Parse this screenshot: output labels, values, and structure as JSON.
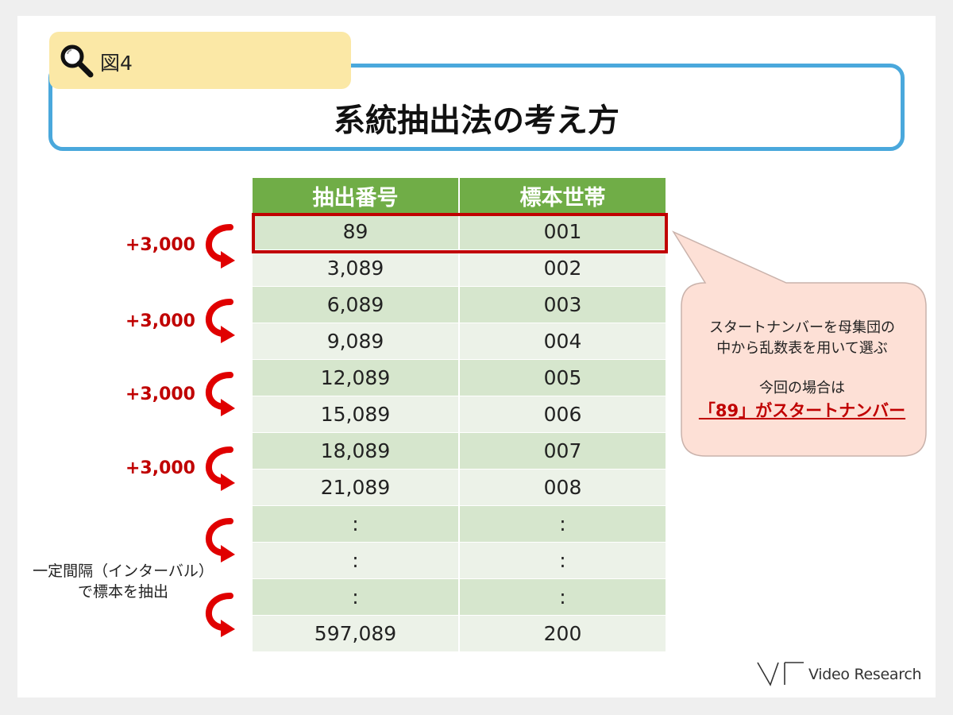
{
  "figure_label": "図4",
  "title": "系統抽出法の考え方",
  "table": {
    "headers": [
      "抽出番号",
      "標本世帯"
    ],
    "rows": [
      [
        "89",
        "001"
      ],
      [
        "3,089",
        "002"
      ],
      [
        "6,089",
        "003"
      ],
      [
        "9,089",
        "004"
      ],
      [
        "12,089",
        "005"
      ],
      [
        "15,089",
        "006"
      ],
      [
        "18,089",
        "007"
      ],
      [
        "21,089",
        "008"
      ],
      [
        ":",
        ":"
      ],
      [
        ":",
        ":"
      ],
      [
        ":",
        ":"
      ],
      [
        "597,089",
        "200"
      ]
    ]
  },
  "steps": [
    "+3,000",
    "+3,000",
    "+3,000",
    "+3,000"
  ],
  "interval_note": [
    "一定間隔（インターバル）",
    "で標本を抽出"
  ],
  "callout": {
    "line1": "スタートナンバーを母集団の",
    "line2": "中から乱数表を用いて選ぶ",
    "line3": "今回の場合は",
    "emphasis": "「89」がスタートナンバー"
  },
  "logo_text": "Video Research",
  "colors": {
    "header_green": "#70ad47",
    "highlight_red": "#c00000",
    "title_border_blue": "#4aa8dc",
    "tag_yellow": "#fbe8a6",
    "callout_fill": "#fde0d6"
  },
  "icons": [
    "magnifier-icon",
    "curved-arrow-icon",
    "video-research-logo"
  ]
}
